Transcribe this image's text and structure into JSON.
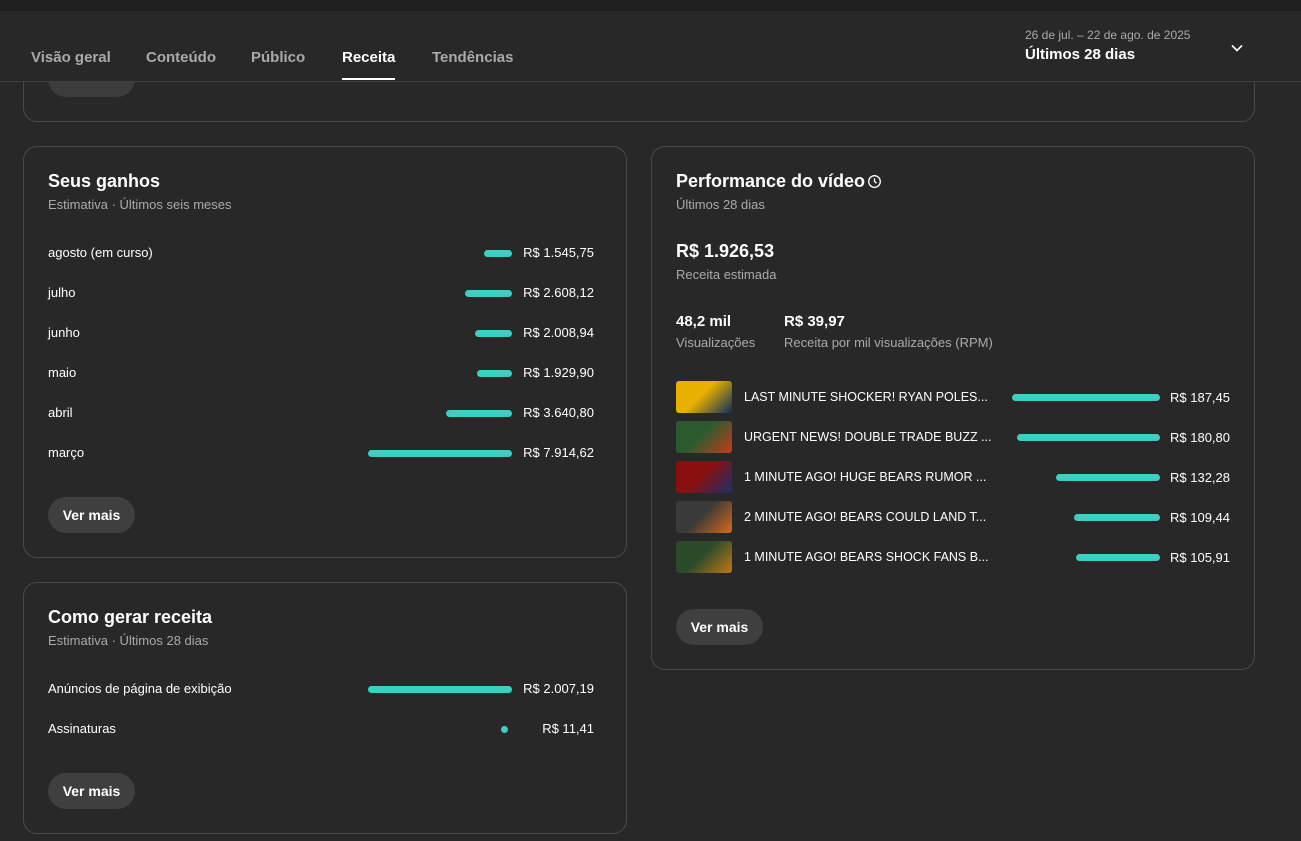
{
  "tabs": [
    {
      "label": "Visão geral"
    },
    {
      "label": "Conteúdo"
    },
    {
      "label": "Público"
    },
    {
      "label": "Receita"
    },
    {
      "label": "Tendências"
    }
  ],
  "active_tab": "Receita",
  "date_picker": {
    "range": "26 de jul. – 22 de ago. de 2025",
    "period": "Últimos 28 dias"
  },
  "accent_color": "#3ecfc3",
  "earnings": {
    "title": "Seus ganhos",
    "subtitle": "Estimativa · Últimos seis meses",
    "rows": [
      {
        "label": "agosto (em curso)",
        "value": "R$ 1.545,75",
        "amount": 1545.75
      },
      {
        "label": "julho",
        "value": "R$ 2.608,12",
        "amount": 2608.12
      },
      {
        "label": "junho",
        "value": "R$ 2.008,94",
        "amount": 2008.94
      },
      {
        "label": "maio",
        "value": "R$ 1.929,90",
        "amount": 1929.9
      },
      {
        "label": "abril",
        "value": "R$ 3.640,80",
        "amount": 3640.8
      },
      {
        "label": "março",
        "value": "R$ 7.914,62",
        "amount": 7914.62
      }
    ],
    "more_label": "Ver mais"
  },
  "revenue_sources": {
    "title": "Como gerar receita",
    "subtitle": "Estimativa · Últimos 28 dias",
    "rows": [
      {
        "label": "Anúncios de página de exibição",
        "value": "R$ 2.007,19",
        "amount": 2007.19
      },
      {
        "label": "Assinaturas",
        "value": "R$ 11,41",
        "amount": 11.41
      }
    ],
    "more_label": "Ver mais"
  },
  "video_performance": {
    "title": "Performance do vídeo",
    "subtitle": "Últimos 28 dias",
    "revenue_value": "R$ 1.926,53",
    "revenue_label": "Receita estimada",
    "views_value": "48,2 mil",
    "views_label": "Visualizações",
    "rpm_value": "R$ 39,97",
    "rpm_label": "Receita por mil visualizações (RPM)",
    "videos": [
      {
        "title": "LAST MINUTE SHOCKER! RYAN POLES...",
        "value": "R$ 187,45",
        "amount": 187.45,
        "thumb_colors": [
          "#e8b000",
          "#0b2d5c"
        ]
      },
      {
        "title": "URGENT NEWS! DOUBLE TRADE BUZZ ...",
        "value": "R$ 180,80",
        "amount": 180.8,
        "thumb_colors": [
          "#2c5a2e",
          "#c83a1a"
        ]
      },
      {
        "title": "1 MINUTE AGO! HUGE BEARS RUMOR ...",
        "value": "R$ 132,28",
        "amount": 132.28,
        "thumb_colors": [
          "#8a1010",
          "#1a2f6b"
        ]
      },
      {
        "title": "2 MINUTE AGO! BEARS COULD LAND T...",
        "value": "R$ 109,44",
        "amount": 109.44,
        "thumb_colors": [
          "#3a3a3a",
          "#d86a1a"
        ]
      },
      {
        "title": "1 MINUTE AGO! BEARS SHOCK FANS B...",
        "value": "R$ 105,91",
        "amount": 105.91,
        "thumb_colors": [
          "#2a4a2a",
          "#c07818"
        ]
      }
    ],
    "more_label": "Ver mais"
  }
}
